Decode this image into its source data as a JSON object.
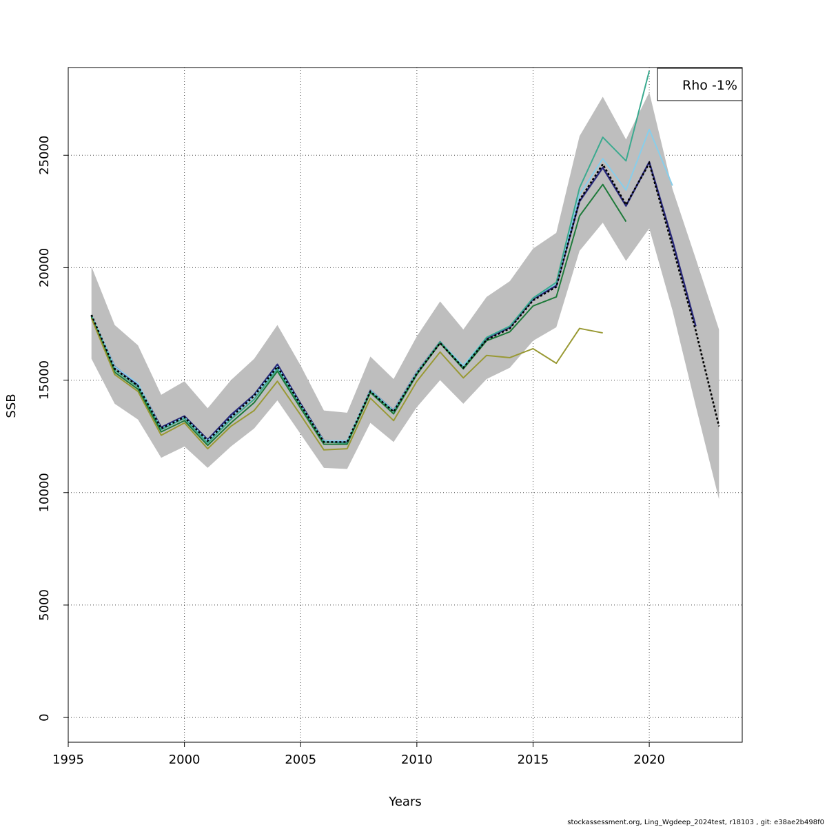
{
  "footer": {
    "text": "stockassessment.org, Ling_Wgdeep_2024test, r18103 , git: e38ae2b498f0"
  },
  "chart_data": {
    "type": "line",
    "title": "",
    "xlabel": "Years",
    "ylabel": "SSB",
    "xlim": [
      1995,
      2024
    ],
    "ylim": [
      -1100,
      28900
    ],
    "x_ticks": [
      1995,
      2000,
      2005,
      2010,
      2015,
      2020
    ],
    "y_ticks": [
      0,
      5000,
      10000,
      15000,
      20000,
      25000
    ],
    "grid": true,
    "legend": {
      "position": "top-right",
      "text": "Rho -1%"
    },
    "confidence_band": {
      "color": "#bebebe",
      "x": [
        1996,
        1997,
        1998,
        1999,
        2000,
        2001,
        2002,
        2003,
        2004,
        2005,
        2006,
        2007,
        2008,
        2009,
        2010,
        2011,
        2012,
        2013,
        2014,
        2015,
        2016,
        2017,
        2018,
        2019,
        2020,
        2021,
        2022,
        2023
      ],
      "lower": [
        15950,
        13950,
        13250,
        11550,
        12050,
        11100,
        12050,
        12850,
        14100,
        12600,
        11100,
        11050,
        13100,
        12250,
        13800,
        15000,
        13950,
        15050,
        15550,
        16750,
        17350,
        20750,
        22000,
        20300,
        21750,
        18100,
        13850,
        9700
      ],
      "upper": [
        20050,
        17450,
        16550,
        14350,
        14950,
        13750,
        15000,
        15950,
        17450,
        15650,
        13650,
        13550,
        16050,
        15050,
        16950,
        18500,
        17250,
        18700,
        19400,
        20850,
        21550,
        25850,
        27600,
        25700,
        27800,
        23500,
        20400,
        17250
      ]
    },
    "series": [
      {
        "color": "#000000",
        "dashed": true,
        "width": 2.5,
        "x": [
          1996,
          1997,
          1998,
          1999,
          2000,
          2001,
          2002,
          2003,
          2004,
          2005,
          2006,
          2007,
          2008,
          2009,
          2010,
          2011,
          2012,
          2013,
          2014,
          2015,
          2016,
          2017,
          2018,
          2019,
          2020,
          2021,
          2022,
          2023
        ],
        "values": [
          17900,
          15500,
          14750,
          12850,
          13350,
          12300,
          13350,
          14300,
          15600,
          13900,
          12250,
          12250,
          14500,
          13600,
          15300,
          16650,
          15550,
          16800,
          17300,
          18550,
          19150,
          23000,
          24600,
          22800,
          24650,
          20950,
          17200,
          12950
        ]
      },
      {
        "color": "#2a2a7c",
        "dashed": false,
        "width": 2.5,
        "x": [
          1996,
          1997,
          1998,
          1999,
          2000,
          2001,
          2002,
          2003,
          2004,
          2005,
          2006,
          2007,
          2008,
          2009,
          2010,
          2011,
          2012,
          2013,
          2014,
          2015,
          2016,
          2017,
          2018,
          2019,
          2020,
          2021,
          2022
        ],
        "values": [
          17850,
          15600,
          14800,
          12900,
          13400,
          12350,
          13450,
          14350,
          15700,
          13950,
          12300,
          12250,
          14550,
          13650,
          15350,
          16700,
          15600,
          16850,
          17350,
          18600,
          19200,
          22950,
          24450,
          22750,
          24700,
          21200,
          17400
        ]
      },
      {
        "color": "#87ceeb",
        "dashed": false,
        "width": 2,
        "x": [
          1996,
          1997,
          1998,
          1999,
          2000,
          2001,
          2002,
          2003,
          2004,
          2005,
          2006,
          2007,
          2008,
          2009,
          2010,
          2011,
          2012,
          2013,
          2014,
          2015,
          2016,
          2017,
          2018,
          2019,
          2020,
          2021
        ],
        "values": [
          17900,
          15600,
          14850,
          12850,
          13350,
          12300,
          13350,
          14300,
          15600,
          13900,
          12300,
          12300,
          14550,
          13650,
          15350,
          16700,
          15650,
          16900,
          17400,
          18650,
          19300,
          23250,
          24850,
          23450,
          26150,
          23650
        ]
      },
      {
        "color": "#3aaa8f",
        "dashed": false,
        "width": 2,
        "x": [
          1996,
          1997,
          1998,
          1999,
          2000,
          2001,
          2002,
          2003,
          2004,
          2005,
          2006,
          2007,
          2008,
          2009,
          2010,
          2011,
          2012,
          2013,
          2014,
          2015,
          2016,
          2017,
          2018,
          2019,
          2020
        ],
        "values": [
          17850,
          15450,
          14700,
          12800,
          13300,
          12200,
          13250,
          14150,
          15500,
          13850,
          12250,
          12200,
          14500,
          13600,
          15300,
          16700,
          15550,
          16900,
          17400,
          18650,
          19350,
          23550,
          25800,
          24750,
          28750
        ]
      },
      {
        "color": "#1e7a3a",
        "dashed": false,
        "width": 2,
        "x": [
          1996,
          1997,
          1998,
          1999,
          2000,
          2001,
          2002,
          2003,
          2004,
          2005,
          2006,
          2007,
          2008,
          2009,
          2010,
          2011,
          2012,
          2013,
          2014,
          2015,
          2016,
          2017,
          2018,
          2019
        ],
        "values": [
          17800,
          15350,
          14600,
          12700,
          13200,
          12100,
          13100,
          14000,
          15400,
          13750,
          12150,
          12150,
          14450,
          13500,
          15250,
          16650,
          15500,
          16750,
          17150,
          18300,
          18700,
          22300,
          23700,
          22050
        ]
      },
      {
        "color": "#999933",
        "dashed": false,
        "width": 2,
        "x": [
          1996,
          1997,
          1998,
          1999,
          2000,
          2001,
          2002,
          2003,
          2004,
          2005,
          2006,
          2007,
          2008,
          2009,
          2010,
          2011,
          2012,
          2013,
          2014,
          2015,
          2016,
          2017,
          2018
        ],
        "values": [
          17750,
          15250,
          14500,
          12550,
          13100,
          11950,
          12950,
          13650,
          14950,
          13450,
          11900,
          11950,
          14200,
          13200,
          14950,
          16250,
          15100,
          16100,
          16000,
          16400,
          15750,
          17300,
          17100
        ]
      }
    ]
  }
}
